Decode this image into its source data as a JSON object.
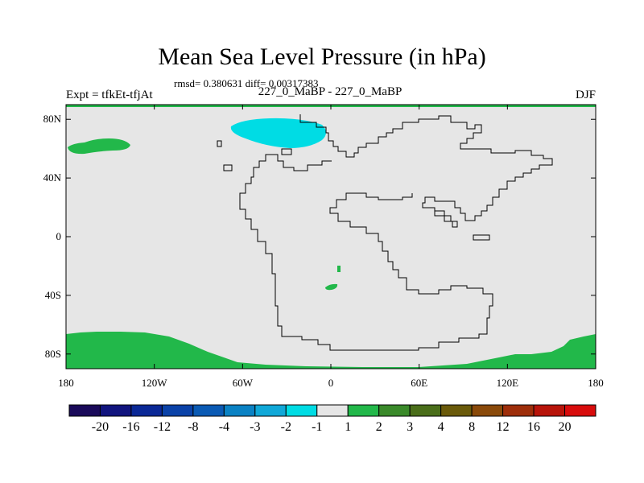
{
  "title": "Mean Sea Level Pressure (in hPa)",
  "stats_line": "rmsd= 0.380631 diff= 0.00317383",
  "left_label": "Expt = tfkEt-tfjAt",
  "center_label": "227_0_MaBP - 227_0_MaBP",
  "right_label": "DJF",
  "chart_data": {
    "type": "heatmap",
    "lon_ticks": [
      "180",
      "120W",
      "60W",
      "0",
      "60E",
      "120E",
      "180"
    ],
    "lat_ticks": [
      "80N",
      "40N",
      "0",
      "40S",
      "80S"
    ],
    "lon_range": [
      -180,
      180
    ],
    "lat_range": [
      -90,
      90
    ],
    "colorbar": {
      "labels": [
        "-20",
        "-16",
        "-12",
        "-8",
        "-4",
        "-3",
        "-2",
        "-1",
        "1",
        "2",
        "3",
        "4",
        "8",
        "12",
        "16",
        "20"
      ],
      "colors": [
        "#1a0a5a",
        "#11147e",
        "#0a2896",
        "#0a42a8",
        "#0a5ab4",
        "#0a82c4",
        "#10a8d8",
        "#00dce4",
        "#e6e6e6",
        "#22b84a",
        "#3a8a2a",
        "#4a6e1a",
        "#6a5a0a",
        "#8a4a0a",
        "#9e2e0a",
        "#b8140a",
        "#d80c0c"
      ]
    }
  }
}
